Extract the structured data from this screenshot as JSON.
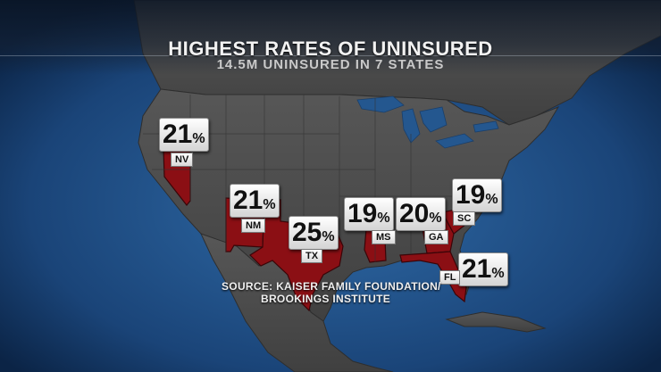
{
  "title": "HIGHEST RATES OF UNINSURED",
  "subtitle": "14.5M UNINSURED IN 7 STATES",
  "source_line1": "SOURCE: KAISER FAMILY FOUNDATION/",
  "source_line2": "BROOKINGS INSTITUTE",
  "states": [
    {
      "abbr": "NV",
      "value": "21",
      "unit": "%"
    },
    {
      "abbr": "NM",
      "value": "21",
      "unit": "%"
    },
    {
      "abbr": "TX",
      "value": "25",
      "unit": "%"
    },
    {
      "abbr": "MS",
      "value": "19",
      "unit": "%"
    },
    {
      "abbr": "GA",
      "value": "20",
      "unit": "%"
    },
    {
      "abbr": "SC",
      "value": "19",
      "unit": "%"
    },
    {
      "abbr": "FL",
      "value": "21",
      "unit": "%"
    }
  ],
  "colors": {
    "ocean": "#1d4f86",
    "land": "#4a4a4a",
    "highlight": "#8b0f14"
  }
}
